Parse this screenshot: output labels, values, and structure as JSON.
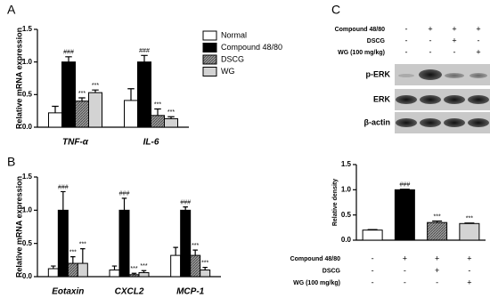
{
  "chart_data": [
    {
      "type": "bar",
      "panel": "A",
      "y_label": "Relative mRNA expression",
      "categories": [
        "TNF-α",
        "IL-6"
      ],
      "series": [
        {
          "name": "Normal",
          "color": "#ffffff",
          "hatched": false,
          "values": [
            0.22,
            0.41
          ],
          "errors": [
            0.1,
            0.18
          ],
          "annotations": [
            null,
            null
          ]
        },
        {
          "name": "Compound 48/80",
          "color": "#000000",
          "hatched": false,
          "values": [
            1.0,
            1.0
          ],
          "errors": [
            0.08,
            0.1
          ],
          "annotations": [
            "###",
            "###"
          ]
        },
        {
          "name": "DSCG",
          "color": "#808080",
          "hatched": true,
          "values": [
            0.4,
            0.18
          ],
          "errors": [
            0.05,
            0.1
          ],
          "annotations": [
            "***",
            "***"
          ]
        },
        {
          "name": "WG",
          "color": "#d3d3d3",
          "hatched": false,
          "values": [
            0.53,
            0.13
          ],
          "errors": [
            0.04,
            0.03
          ],
          "annotations": [
            "***",
            "***"
          ]
        }
      ],
      "ylim": [
        0,
        1.5
      ],
      "yticks": [
        {
          "value": 0,
          "label": "0.0"
        },
        0.5,
        {
          "value": 1,
          "label": "1.0"
        },
        1.5
      ],
      "legend": "right"
    },
    {
      "type": "bar",
      "panel": "B",
      "y_label": "Relative mRNA expression",
      "categories": [
        "Eotaxin",
        "CXCL2",
        "MCP-1"
      ],
      "series": [
        {
          "name": "Normal",
          "color": "#ffffff",
          "hatched": false,
          "values": [
            0.12,
            0.1,
            0.32
          ],
          "errors": [
            0.04,
            0.06,
            0.12
          ],
          "annotations": [
            null,
            null,
            null
          ]
        },
        {
          "name": "Compound 48/80",
          "color": "#000000",
          "hatched": false,
          "values": [
            1.0,
            1.0,
            1.0
          ],
          "errors": [
            0.28,
            0.18,
            0.05
          ],
          "annotations": [
            "###",
            "###",
            "###"
          ]
        },
        {
          "name": "DSCG",
          "color": "#808080",
          "hatched": true,
          "values": [
            0.2,
            0.03,
            0.32
          ],
          "errors": [
            0.1,
            0.02,
            0.08
          ],
          "annotations": [
            "***",
            "***",
            "***"
          ]
        },
        {
          "name": "WG",
          "color": "#d3d3d3",
          "hatched": false,
          "values": [
            0.2,
            0.06,
            0.1
          ],
          "errors": [
            0.22,
            0.03,
            0.04
          ],
          "annotations": [
            "***",
            "***",
            "***"
          ]
        }
      ],
      "ylim": [
        0,
        1.5
      ],
      "yticks": [
        {
          "value": 0,
          "label": "0.0"
        },
        0.5,
        {
          "value": 1,
          "label": "1.0"
        },
        1.5
      ]
    },
    {
      "type": "bar",
      "panel": "C",
      "y_label": "Relative density",
      "values": [
        0.2,
        1.0,
        0.35,
        0.33
      ],
      "errors": [
        0.01,
        0.01,
        0.03,
        0.01
      ],
      "colors": [
        "#ffffff",
        "#000000",
        "#808080",
        "#d3d3d3"
      ],
      "hatched": [
        false,
        false,
        true,
        false
      ],
      "annotations": [
        null,
        "###",
        "***",
        "***"
      ],
      "ylim": [
        0,
        1.5
      ],
      "yticks": [
        {
          "value": 0,
          "label": "0.0"
        },
        0.5,
        {
          "value": 1,
          "label": "1.0"
        },
        1.5
      ],
      "treatments": [
        {
          "label": "Compound 48/80",
          "signs": [
            "-",
            "+",
            "+",
            "+"
          ]
        },
        {
          "label": "DSCG",
          "signs": [
            "-",
            "-",
            "+",
            "-"
          ]
        },
        {
          "label": "WG (100 mg/kg)",
          "signs": [
            "-",
            "-",
            "-",
            "+"
          ]
        }
      ],
      "blot": {
        "treatments": [
          {
            "label": "Compound 48/80",
            "signs": [
              "-",
              "+",
              "+",
              "+"
            ]
          },
          {
            "label": "DSCG",
            "signs": [
              "-",
              "-",
              "+",
              "-"
            ]
          },
          {
            "label": "WG (100 mg/kg)",
            "signs": [
              "-",
              "-",
              "-",
              "+"
            ]
          }
        ],
        "bands": [
          "p-ERK",
          "ERK",
          "β-actin"
        ]
      }
    }
  ]
}
